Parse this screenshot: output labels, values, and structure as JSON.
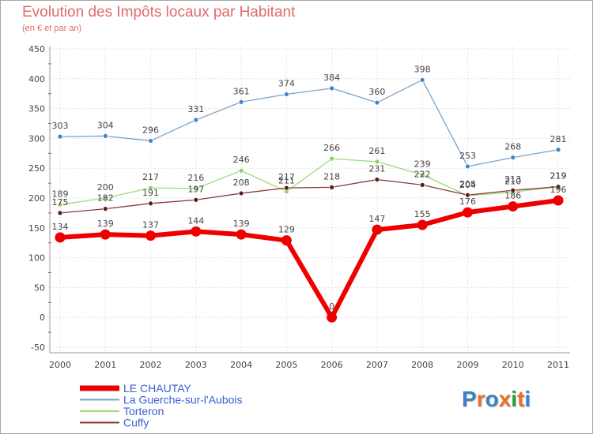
{
  "header": {
    "title": "Evolution des Impôts locaux par Habitant",
    "subtitle": "(en € et par an)"
  },
  "logo": {
    "text": "Proxiti",
    "letters": [
      "P",
      "r",
      "o",
      "x",
      "i",
      "t",
      "i"
    ],
    "colors": [
      "#3b82c4",
      "#e8702a",
      "#3b82c4",
      "#e8702a",
      "#2c9c3a",
      "#e8702a",
      "#3b82c4"
    ]
  },
  "chart_data": {
    "type": "line",
    "x": [
      "2000",
      "2001",
      "2002",
      "2003",
      "2004",
      "2005",
      "2006",
      "2007",
      "2008",
      "2009",
      "2010",
      "2011"
    ],
    "ylim": [
      -50,
      450
    ],
    "yticks": [
      -50,
      0,
      50,
      100,
      150,
      200,
      250,
      300,
      350,
      400,
      450
    ],
    "xlabel": "",
    "ylabel": "",
    "grid": true,
    "legend_position": "bottom-left",
    "series": [
      {
        "name": "La Guerche-sur-l'Aubois",
        "color": "#7aa3c8",
        "marker": "#3d85c6",
        "width": 1.3,
        "values": [
          303,
          304,
          296,
          331,
          361,
          374,
          384,
          360,
          398,
          253,
          268,
          281
        ]
      },
      {
        "name": "Torteron",
        "color": "#9fdb7a",
        "marker": "#90d06a",
        "width": 1.3,
        "values": [
          189,
          200,
          217,
          216,
          246,
          211,
          266,
          261,
          239,
          204,
          210,
          219
        ]
      },
      {
        "name": "Cuffy",
        "color": "#8b3a3a",
        "marker": "#5a1a1a",
        "width": 1.3,
        "values": [
          175,
          182,
          191,
          197,
          208,
          217,
          218,
          231,
          222,
          205,
          213,
          219
        ]
      },
      {
        "name": "LE CHAUTAY",
        "color": "#ee0000",
        "marker": "#ee0000",
        "width": 6,
        "values": [
          134,
          139,
          137,
          144,
          139,
          129,
          0,
          147,
          155,
          176,
          186,
          196
        ]
      }
    ],
    "legend_order": [
      "LE CHAUTAY",
      "La Guerche-sur-l'Aubois",
      "Torteron",
      "Cuffy"
    ]
  }
}
